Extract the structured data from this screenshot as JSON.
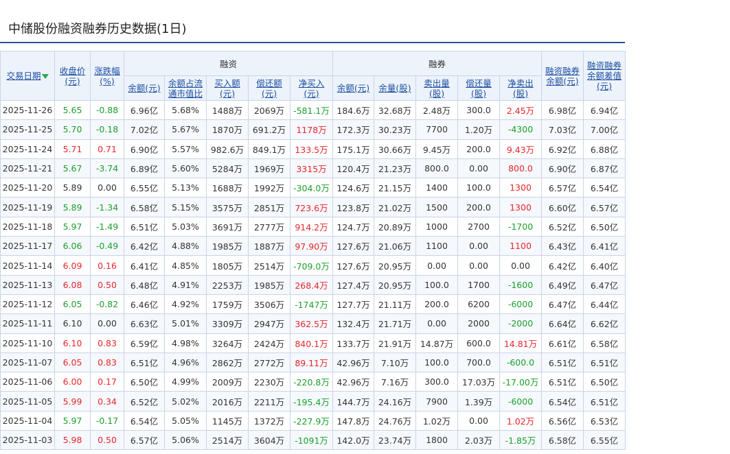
{
  "page": {
    "title": "中储股份融资融券历史数据(1日)"
  },
  "colors": {
    "up": "#e8252a",
    "down": "#1aa02b",
    "link": "#1e4fa1",
    "rule": "#29508f"
  },
  "headers": {
    "date": "交易日期",
    "close": "收盘价\n(元)",
    "change": "涨跌幅\n(%)",
    "margin_group": "融资",
    "short_group": "融券",
    "m_balance": "余额(元)",
    "m_ratio": "余额占流\n通市值比",
    "m_buy": "买入额\n(元)",
    "m_repay": "偿还额\n(元)",
    "m_net": "净买入\n(元)",
    "s_balance": "余额(元)",
    "s_volume": "余量(股)",
    "s_sell": "卖出量\n(股)",
    "s_repay": "偿还量\n(股)",
    "s_net": "净卖出\n(股)",
    "total_balance": "融资融券\n余额(元)",
    "diff_balance": "融资融券\n余额差值\n(元)"
  },
  "rows": [
    {
      "date": "2025-11-26",
      "close": "5.65",
      "change": "-0.88",
      "m_balance": "6.96亿",
      "m_ratio": "5.68%",
      "m_buy": "1488万",
      "m_repay": "2069万",
      "m_net": "-581.1万",
      "s_balance": "184.6万",
      "s_volume": "32.68万",
      "s_sell": "2.48万",
      "s_repay": "300.0",
      "s_net": "2.45万",
      "total": "6.98亿",
      "diff": "6.94亿",
      "close_dir": "down",
      "change_dir": "down",
      "m_net_dir": "down",
      "s_net_dir": "up"
    },
    {
      "date": "2025-11-25",
      "close": "5.70",
      "change": "-0.18",
      "m_balance": "7.02亿",
      "m_ratio": "5.67%",
      "m_buy": "1870万",
      "m_repay": "691.2万",
      "m_net": "1178万",
      "s_balance": "172.3万",
      "s_volume": "30.23万",
      "s_sell": "7700",
      "s_repay": "1.20万",
      "s_net": "-4300",
      "total": "7.03亿",
      "diff": "7.00亿",
      "close_dir": "down",
      "change_dir": "down",
      "m_net_dir": "up",
      "s_net_dir": "down"
    },
    {
      "date": "2025-11-24",
      "close": "5.71",
      "change": "0.71",
      "m_balance": "6.90亿",
      "m_ratio": "5.57%",
      "m_buy": "982.6万",
      "m_repay": "849.1万",
      "m_net": "133.5万",
      "s_balance": "175.1万",
      "s_volume": "30.66万",
      "s_sell": "9.45万",
      "s_repay": "200.0",
      "s_net": "9.43万",
      "total": "6.92亿",
      "diff": "6.88亿",
      "close_dir": "up",
      "change_dir": "up",
      "m_net_dir": "up",
      "s_net_dir": "up"
    },
    {
      "date": "2025-11-21",
      "close": "5.67",
      "change": "-3.74",
      "m_balance": "6.89亿",
      "m_ratio": "5.60%",
      "m_buy": "5284万",
      "m_repay": "1969万",
      "m_net": "3315万",
      "s_balance": "120.4万",
      "s_volume": "21.23万",
      "s_sell": "800.0",
      "s_repay": "0.00",
      "s_net": "800.0",
      "total": "6.90亿",
      "diff": "6.87亿",
      "close_dir": "down",
      "change_dir": "down",
      "m_net_dir": "up",
      "s_net_dir": "up"
    },
    {
      "date": "2025-11-20",
      "close": "5.89",
      "change": "0.00",
      "m_balance": "6.55亿",
      "m_ratio": "5.13%",
      "m_buy": "1688万",
      "m_repay": "1992万",
      "m_net": "-304.0万",
      "s_balance": "124.6万",
      "s_volume": "21.15万",
      "s_sell": "1400",
      "s_repay": "100.0",
      "s_net": "1300",
      "total": "6.57亿",
      "diff": "6.54亿",
      "close_dir": "flat",
      "change_dir": "flat",
      "m_net_dir": "down",
      "s_net_dir": "up"
    },
    {
      "date": "2025-11-19",
      "close": "5.89",
      "change": "-1.34",
      "m_balance": "6.58亿",
      "m_ratio": "5.15%",
      "m_buy": "3575万",
      "m_repay": "2851万",
      "m_net": "723.6万",
      "s_balance": "123.8万",
      "s_volume": "21.02万",
      "s_sell": "1500",
      "s_repay": "200.0",
      "s_net": "1300",
      "total": "6.60亿",
      "diff": "6.57亿",
      "close_dir": "down",
      "change_dir": "down",
      "m_net_dir": "up",
      "s_net_dir": "up"
    },
    {
      "date": "2025-11-18",
      "close": "5.97",
      "change": "-1.49",
      "m_balance": "6.51亿",
      "m_ratio": "5.03%",
      "m_buy": "3691万",
      "m_repay": "2777万",
      "m_net": "914.2万",
      "s_balance": "124.7万",
      "s_volume": "20.89万",
      "s_sell": "1000",
      "s_repay": "2700",
      "s_net": "-1700",
      "total": "6.52亿",
      "diff": "6.50亿",
      "close_dir": "down",
      "change_dir": "down",
      "m_net_dir": "up",
      "s_net_dir": "down"
    },
    {
      "date": "2025-11-17",
      "close": "6.06",
      "change": "-0.49",
      "m_balance": "6.42亿",
      "m_ratio": "4.88%",
      "m_buy": "1985万",
      "m_repay": "1887万",
      "m_net": "97.90万",
      "s_balance": "127.6万",
      "s_volume": "21.06万",
      "s_sell": "1100",
      "s_repay": "0.00",
      "s_net": "1100",
      "total": "6.43亿",
      "diff": "6.41亿",
      "close_dir": "down",
      "change_dir": "down",
      "m_net_dir": "up",
      "s_net_dir": "up"
    },
    {
      "date": "2025-11-14",
      "close": "6.09",
      "change": "0.16",
      "m_balance": "6.41亿",
      "m_ratio": "4.85%",
      "m_buy": "1805万",
      "m_repay": "2514万",
      "m_net": "-709.0万",
      "s_balance": "127.6万",
      "s_volume": "20.95万",
      "s_sell": "0.00",
      "s_repay": "0.00",
      "s_net": "0.00",
      "total": "6.42亿",
      "diff": "6.40亿",
      "close_dir": "up",
      "change_dir": "up",
      "m_net_dir": "down",
      "s_net_dir": "flat"
    },
    {
      "date": "2025-11-13",
      "close": "6.08",
      "change": "0.50",
      "m_balance": "6.48亿",
      "m_ratio": "4.91%",
      "m_buy": "2253万",
      "m_repay": "1985万",
      "m_net": "268.4万",
      "s_balance": "127.4万",
      "s_volume": "20.95万",
      "s_sell": "100.0",
      "s_repay": "1700",
      "s_net": "-1600",
      "total": "6.49亿",
      "diff": "6.47亿",
      "close_dir": "up",
      "change_dir": "up",
      "m_net_dir": "up",
      "s_net_dir": "down"
    },
    {
      "date": "2025-11-12",
      "close": "6.05",
      "change": "-0.82",
      "m_balance": "6.46亿",
      "m_ratio": "4.92%",
      "m_buy": "1759万",
      "m_repay": "3506万",
      "m_net": "-1747万",
      "s_balance": "127.7万",
      "s_volume": "21.11万",
      "s_sell": "200.0",
      "s_repay": "6200",
      "s_net": "-6000",
      "total": "6.47亿",
      "diff": "6.44亿",
      "close_dir": "down",
      "change_dir": "down",
      "m_net_dir": "down",
      "s_net_dir": "down"
    },
    {
      "date": "2025-11-11",
      "close": "6.10",
      "change": "0.00",
      "m_balance": "6.63亿",
      "m_ratio": "5.01%",
      "m_buy": "3309万",
      "m_repay": "2947万",
      "m_net": "362.5万",
      "s_balance": "132.4万",
      "s_volume": "21.71万",
      "s_sell": "0.00",
      "s_repay": "2000",
      "s_net": "-2000",
      "total": "6.64亿",
      "diff": "6.62亿",
      "close_dir": "flat",
      "change_dir": "flat",
      "m_net_dir": "up",
      "s_net_dir": "down"
    },
    {
      "date": "2025-11-10",
      "close": "6.10",
      "change": "0.83",
      "m_balance": "6.59亿",
      "m_ratio": "4.98%",
      "m_buy": "3264万",
      "m_repay": "2424万",
      "m_net": "840.1万",
      "s_balance": "133.7万",
      "s_volume": "21.91万",
      "s_sell": "14.87万",
      "s_repay": "600.0",
      "s_net": "14.81万",
      "total": "6.61亿",
      "diff": "6.58亿",
      "close_dir": "up",
      "change_dir": "up",
      "m_net_dir": "up",
      "s_net_dir": "up"
    },
    {
      "date": "2025-11-07",
      "close": "6.05",
      "change": "0.83",
      "m_balance": "6.51亿",
      "m_ratio": "4.96%",
      "m_buy": "2862万",
      "m_repay": "2772万",
      "m_net": "89.11万",
      "s_balance": "42.96万",
      "s_volume": "7.10万",
      "s_sell": "100.0",
      "s_repay": "700.0",
      "s_net": "-600.0",
      "total": "6.51亿",
      "diff": "6.51亿",
      "close_dir": "up",
      "change_dir": "up",
      "m_net_dir": "up",
      "s_net_dir": "down"
    },
    {
      "date": "2025-11-06",
      "close": "6.00",
      "change": "0.17",
      "m_balance": "6.50亿",
      "m_ratio": "4.99%",
      "m_buy": "2009万",
      "m_repay": "2230万",
      "m_net": "-220.8万",
      "s_balance": "42.96万",
      "s_volume": "7.16万",
      "s_sell": "300.0",
      "s_repay": "17.03万",
      "s_net": "-17.00万",
      "total": "6.51亿",
      "diff": "6.50亿",
      "close_dir": "up",
      "change_dir": "up",
      "m_net_dir": "down",
      "s_net_dir": "down"
    },
    {
      "date": "2025-11-05",
      "close": "5.99",
      "change": "0.34",
      "m_balance": "6.52亿",
      "m_ratio": "5.02%",
      "m_buy": "2016万",
      "m_repay": "2211万",
      "m_net": "-195.4万",
      "s_balance": "144.7万",
      "s_volume": "24.16万",
      "s_sell": "7900",
      "s_repay": "1.39万",
      "s_net": "-6000",
      "total": "6.54亿",
      "diff": "6.51亿",
      "close_dir": "up",
      "change_dir": "up",
      "m_net_dir": "down",
      "s_net_dir": "down"
    },
    {
      "date": "2025-11-04",
      "close": "5.97",
      "change": "-0.17",
      "m_balance": "6.54亿",
      "m_ratio": "5.05%",
      "m_buy": "1145万",
      "m_repay": "1372万",
      "m_net": "-227.9万",
      "s_balance": "147.8万",
      "s_volume": "24.76万",
      "s_sell": "1.02万",
      "s_repay": "0.00",
      "s_net": "1.02万",
      "total": "6.56亿",
      "diff": "6.53亿",
      "close_dir": "down",
      "change_dir": "down",
      "m_net_dir": "down",
      "s_net_dir": "up"
    },
    {
      "date": "2025-11-03",
      "close": "5.98",
      "change": "0.50",
      "m_balance": "6.57亿",
      "m_ratio": "5.06%",
      "m_buy": "2514万",
      "m_repay": "3604万",
      "m_net": "-1091万",
      "s_balance": "142.0万",
      "s_volume": "23.74万",
      "s_sell": "1800",
      "s_repay": "2.03万",
      "s_net": "-1.85万",
      "total": "6.58亿",
      "diff": "6.55亿",
      "close_dir": "up",
      "change_dir": "up",
      "m_net_dir": "down",
      "s_net_dir": "down"
    }
  ]
}
